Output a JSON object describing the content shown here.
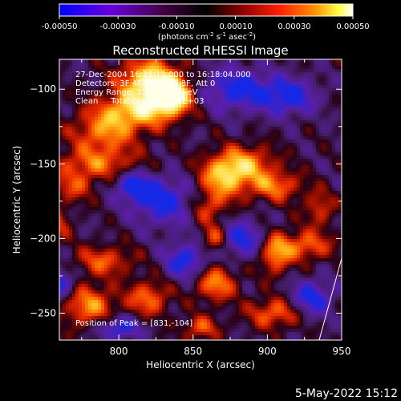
{
  "colorbar": {
    "tick_labels": [
      "-0.00050",
      "-0.00030",
      "-0.00010",
      "0.00010",
      "0.00030",
      "0.00050"
    ],
    "tick_values": [
      -0.0005,
      -0.0003,
      -0.0001,
      0.0001,
      0.0003,
      0.0005
    ],
    "range": [
      -0.0005,
      0.0005
    ],
    "units_text": "(photons cm",
    "units_exp1": "-2",
    "units_mid1": " s",
    "units_exp2": "-1",
    "units_mid2": " asec",
    "units_exp3": "-2",
    "units_end": ")",
    "colors": [
      "#0000ff",
      "#8000ff",
      "#400040",
      "#000000",
      "#800000",
      "#ff0000",
      "#ff8000",
      "#ffff00",
      "#ffffff"
    ]
  },
  "chart_data": {
    "type": "heatmap",
    "title": "Reconstructed RHESSI Image",
    "xlabel": "Heliocentric X (arcsec)",
    "ylabel": "Heliocentric Y (arcsec)",
    "xlim": [
      760,
      950
    ],
    "ylim": [
      -268,
      -80
    ],
    "x_ticks": [
      800,
      850,
      900,
      950
    ],
    "x_tick_labels": [
      "800",
      "850",
      "900",
      "950"
    ],
    "y_ticks": [
      -100,
      -150,
      -200,
      -250
    ],
    "y_tick_labels": [
      "−100",
      "−150",
      "−200",
      "−250"
    ],
    "annotations": [
      "27-Dec-2004 16:15:12.000 to 16:18:04.000",
      "Detectors: 3F 4F 5F 6F 7F 8F, Att 0",
      "Energy Range: 25.0 - 50.0 keV",
      "Clean     Total counts: 3.92E+03"
    ],
    "peak_label": "Position of Peak = [831,-104]",
    "peak": [
      831,
      -104
    ],
    "grid": false
  },
  "footer": {
    "date": "5-May-2022 15:12"
  },
  "colors": {
    "background": "#000000",
    "foreground": "#ffffff"
  }
}
